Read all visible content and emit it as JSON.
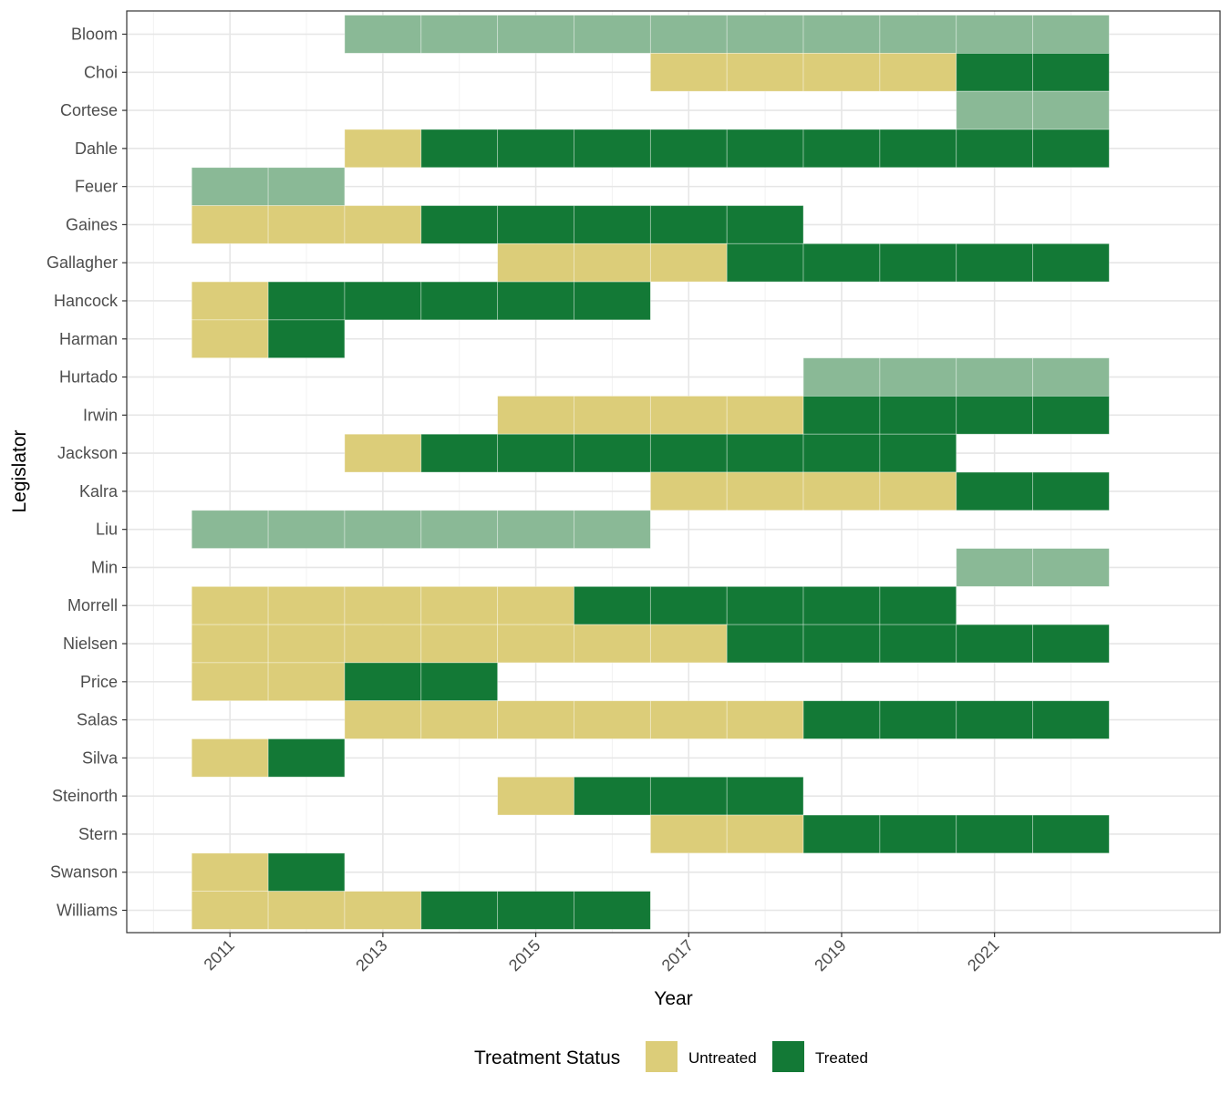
{
  "chart_data": {
    "type": "heatmap",
    "title": "",
    "xlabel": "Year",
    "ylabel": "Legislator",
    "x_range": [
      2009.65,
      2023.95
    ],
    "x_ticks": [
      2011,
      2013,
      2015,
      2017,
      2019,
      2021
    ],
    "grid": true,
    "legend_position": "bottom",
    "legend": {
      "title": "Treatment Status",
      "entries": [
        {
          "label": "Untreated",
          "color": "#dccd79"
        },
        {
          "label": "Treated",
          "color": "#137936"
        }
      ]
    },
    "status_colors": {
      "untreated": "#dccd79",
      "treated": "#137936",
      "always_untreated": "#8ab996"
    },
    "legislators": [
      {
        "name": "Bloom",
        "segments": [
          {
            "status": "always_untreated",
            "start": 2013,
            "end": 2022
          }
        ]
      },
      {
        "name": "Choi",
        "segments": [
          {
            "status": "untreated",
            "start": 2017,
            "end": 2020
          },
          {
            "status": "treated",
            "start": 2021,
            "end": 2022
          }
        ]
      },
      {
        "name": "Cortese",
        "segments": [
          {
            "status": "always_untreated",
            "start": 2021,
            "end": 2022
          }
        ]
      },
      {
        "name": "Dahle",
        "segments": [
          {
            "status": "untreated",
            "start": 2013,
            "end": 2013
          },
          {
            "status": "treated",
            "start": 2014,
            "end": 2022
          }
        ]
      },
      {
        "name": "Feuer",
        "segments": [
          {
            "status": "always_untreated",
            "start": 2011,
            "end": 2012
          }
        ]
      },
      {
        "name": "Gaines",
        "segments": [
          {
            "status": "untreated",
            "start": 2011,
            "end": 2013
          },
          {
            "status": "treated",
            "start": 2014,
            "end": 2018
          }
        ]
      },
      {
        "name": "Gallagher",
        "segments": [
          {
            "status": "untreated",
            "start": 2015,
            "end": 2017
          },
          {
            "status": "treated",
            "start": 2018,
            "end": 2022
          }
        ]
      },
      {
        "name": "Hancock",
        "segments": [
          {
            "status": "untreated",
            "start": 2011,
            "end": 2011
          },
          {
            "status": "treated",
            "start": 2012,
            "end": 2016
          }
        ]
      },
      {
        "name": "Harman",
        "segments": [
          {
            "status": "untreated",
            "start": 2011,
            "end": 2011
          },
          {
            "status": "treated",
            "start": 2012,
            "end": 2012
          }
        ]
      },
      {
        "name": "Hurtado",
        "segments": [
          {
            "status": "always_untreated",
            "start": 2019,
            "end": 2022
          }
        ]
      },
      {
        "name": "Irwin",
        "segments": [
          {
            "status": "untreated",
            "start": 2015,
            "end": 2018
          },
          {
            "status": "treated",
            "start": 2019,
            "end": 2022
          }
        ]
      },
      {
        "name": "Jackson",
        "segments": [
          {
            "status": "untreated",
            "start": 2013,
            "end": 2013
          },
          {
            "status": "treated",
            "start": 2014,
            "end": 2020
          }
        ]
      },
      {
        "name": "Kalra",
        "segments": [
          {
            "status": "untreated",
            "start": 2017,
            "end": 2020
          },
          {
            "status": "treated",
            "start": 2021,
            "end": 2022
          }
        ]
      },
      {
        "name": "Liu",
        "segments": [
          {
            "status": "always_untreated",
            "start": 2011,
            "end": 2016
          }
        ]
      },
      {
        "name": "Min",
        "segments": [
          {
            "status": "always_untreated",
            "start": 2021,
            "end": 2022
          }
        ]
      },
      {
        "name": "Morrell",
        "segments": [
          {
            "status": "untreated",
            "start": 2011,
            "end": 2015
          },
          {
            "status": "treated",
            "start": 2016,
            "end": 2020
          }
        ]
      },
      {
        "name": "Nielsen",
        "segments": [
          {
            "status": "untreated",
            "start": 2011,
            "end": 2017
          },
          {
            "status": "treated",
            "start": 2018,
            "end": 2022
          }
        ]
      },
      {
        "name": "Price",
        "segments": [
          {
            "status": "untreated",
            "start": 2011,
            "end": 2012
          },
          {
            "status": "treated",
            "start": 2013,
            "end": 2014
          }
        ]
      },
      {
        "name": "Salas",
        "segments": [
          {
            "status": "untreated",
            "start": 2013,
            "end": 2018
          },
          {
            "status": "treated",
            "start": 2019,
            "end": 2022
          }
        ]
      },
      {
        "name": "Silva",
        "segments": [
          {
            "status": "untreated",
            "start": 2011,
            "end": 2011
          },
          {
            "status": "treated",
            "start": 2012,
            "end": 2012
          }
        ]
      },
      {
        "name": "Steinorth",
        "segments": [
          {
            "status": "untreated",
            "start": 2015,
            "end": 2015
          },
          {
            "status": "treated",
            "start": 2016,
            "end": 2018
          }
        ]
      },
      {
        "name": "Stern",
        "segments": [
          {
            "status": "untreated",
            "start": 2017,
            "end": 2018
          },
          {
            "status": "treated",
            "start": 2019,
            "end": 2022
          }
        ]
      },
      {
        "name": "Swanson",
        "segments": [
          {
            "status": "untreated",
            "start": 2011,
            "end": 2011
          },
          {
            "status": "treated",
            "start": 2012,
            "end": 2012
          }
        ]
      },
      {
        "name": "Williams",
        "segments": [
          {
            "status": "untreated",
            "start": 2011,
            "end": 2013
          },
          {
            "status": "treated",
            "start": 2014,
            "end": 2016
          }
        ]
      }
    ]
  }
}
